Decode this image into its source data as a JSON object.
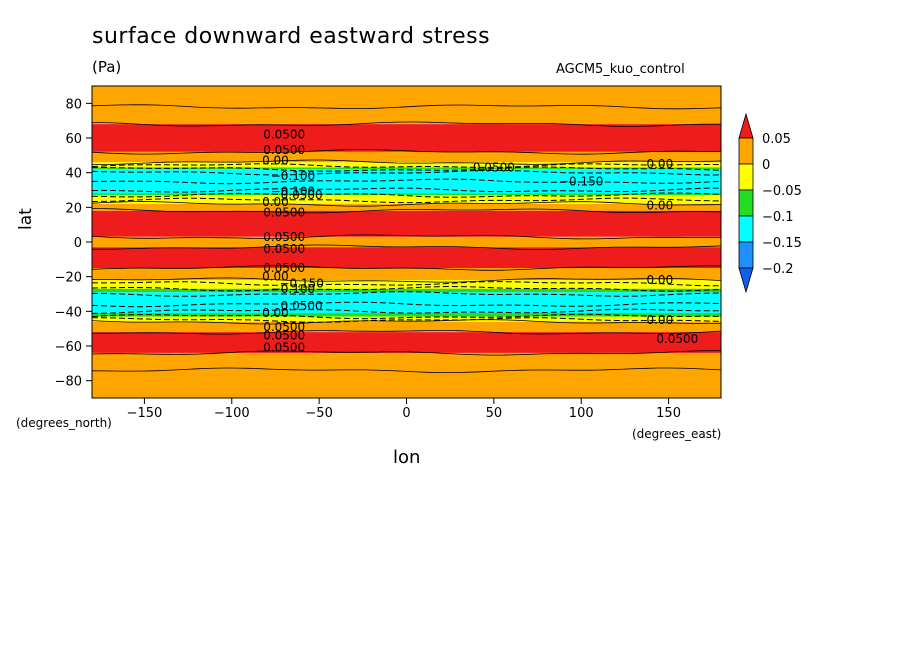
{
  "chart_data": {
    "type": "heatmap",
    "title": "surface downward eastward stress",
    "units": "(Pa)",
    "dataset": "AGCM5_kuo_control",
    "xlabel": "lon",
    "ylabel": "lat",
    "xunits": "(degrees_east)",
    "yunits": "(degrees_north)",
    "xlim": [
      -180,
      180
    ],
    "ylim": [
      -90,
      90
    ],
    "xticks": [
      -150,
      -100,
      -50,
      0,
      50,
      100,
      150
    ],
    "yticks": [
      80,
      60,
      40,
      20,
      0,
      -20,
      -40,
      -60,
      -80
    ],
    "xticklabels": [
      "−150",
      "−100",
      "−50",
      "0",
      "50",
      "100",
      "150"
    ],
    "yticklabels": [
      "80",
      "60",
      "40",
      "20",
      "0",
      "−20",
      "−40",
      "−60",
      "−80"
    ],
    "colorbar": {
      "labels": [
        "0.05",
        "0",
        "−0.05",
        "−0.1",
        "−0.15",
        "−0.2"
      ],
      "levels": [
        0.05,
        0,
        -0.05,
        -0.1,
        -0.15,
        -0.2
      ],
      "colors": [
        "#ee1c1c",
        "#ffa500",
        "#ffff00",
        "#22dd22",
        "#00ffff",
        "#1e90ff",
        "#1060ee"
      ],
      "extend": "both"
    },
    "bands": [
      {
        "lat_min": 68,
        "lat_max": 90,
        "level": "0 to 0.05",
        "color": "#ffa500"
      },
      {
        "lat_min": 52,
        "lat_max": 68,
        "level": "> 0.05",
        "color": "#ee1c1c"
      },
      {
        "lat_min": 46,
        "lat_max": 52,
        "level": "0 to 0.05",
        "color": "#ffa500"
      },
      {
        "lat_min": 43,
        "lat_max": 46,
        "level": "-0.05 to 0",
        "color": "#ffff00"
      },
      {
        "lat_min": 42,
        "lat_max": 43,
        "level": "-0.1 to -0.05",
        "color": "#22dd22"
      },
      {
        "lat_min": 28,
        "lat_max": 42,
        "level": "-0.15 to -0.1",
        "color": "#00ffff"
      },
      {
        "lat_min": 27,
        "lat_max": 28,
        "level": "-0.1 to -0.05",
        "color": "#22dd22"
      },
      {
        "lat_min": 22,
        "lat_max": 27,
        "level": "-0.05 to 0",
        "color": "#ffff00"
      },
      {
        "lat_min": 18,
        "lat_max": 22,
        "level": "0 to 0.05",
        "color": "#ffa500"
      },
      {
        "lat_min": 3,
        "lat_max": 18,
        "level": "> 0.05",
        "color": "#ee1c1c"
      },
      {
        "lat_min": -3,
        "lat_max": 3,
        "level": "0 to 0.05",
        "color": "#ffa500"
      },
      {
        "lat_min": -15,
        "lat_max": -3,
        "level": "> 0.05",
        "color": "#ee1c1c"
      },
      {
        "lat_min": -22,
        "lat_max": -15,
        "level": "0 to 0.05",
        "color": "#ffa500"
      },
      {
        "lat_min": -27,
        "lat_max": -22,
        "level": "-0.05 to 0",
        "color": "#ffff00"
      },
      {
        "lat_min": -29,
        "lat_max": -27,
        "level": "-0.1 to -0.05",
        "color": "#22dd22"
      },
      {
        "lat_min": -41,
        "lat_max": -29,
        "level": "-0.15 to -0.1",
        "color": "#00ffff"
      },
      {
        "lat_min": -43,
        "lat_max": -41,
        "level": "-0.1 to -0.05",
        "color": "#22dd22"
      },
      {
        "lat_min": -46,
        "lat_max": -43,
        "level": "-0.05 to 0",
        "color": "#ffff00"
      },
      {
        "lat_min": -52,
        "lat_max": -46,
        "level": "0 to 0.05",
        "color": "#ffa500"
      },
      {
        "lat_min": -64,
        "lat_max": -52,
        "level": "> 0.05",
        "color": "#ee1c1c"
      },
      {
        "lat_min": -90,
        "lat_max": -64,
        "level": "0 to 0.05",
        "color": "#ffa500"
      }
    ],
    "contours": [
      {
        "lat": 78,
        "level": 0.0,
        "dashed": false
      },
      {
        "lat": 68,
        "level": 0.05,
        "dashed": false
      },
      {
        "lat": 52,
        "level": 0.05,
        "dashed": false
      },
      {
        "lat": 46,
        "level": 0.0,
        "dashed": false
      },
      {
        "lat": 44,
        "level": -0.025,
        "dashed": true
      },
      {
        "lat": 42,
        "level": -0.05,
        "dashed": true
      },
      {
        "lat": 40,
        "level": -0.1,
        "dashed": true
      },
      {
        "lat": 35,
        "level": -0.15,
        "dashed": true
      },
      {
        "lat": 30,
        "level": -0.1,
        "dashed": true
      },
      {
        "lat": 27,
        "level": -0.05,
        "dashed": true
      },
      {
        "lat": 24,
        "level": -0.025,
        "dashed": true
      },
      {
        "lat": 22,
        "level": 0.0,
        "dashed": false
      },
      {
        "lat": 18,
        "level": 0.05,
        "dashed": false
      },
      {
        "lat": 3,
        "level": 0.05,
        "dashed": false
      },
      {
        "lat": -3,
        "level": 0.05,
        "dashed": false
      },
      {
        "lat": -15,
        "level": 0.05,
        "dashed": false
      },
      {
        "lat": -22,
        "level": 0.0,
        "dashed": false
      },
      {
        "lat": -24,
        "level": -0.025,
        "dashed": true
      },
      {
        "lat": -27,
        "level": -0.05,
        "dashed": true
      },
      {
        "lat": -30,
        "level": -0.1,
        "dashed": true
      },
      {
        "lat": -36,
        "level": -0.15,
        "dashed": true
      },
      {
        "lat": -40,
        "level": -0.1,
        "dashed": true
      },
      {
        "lat": -43,
        "level": -0.05,
        "dashed": true
      },
      {
        "lat": -45,
        "level": -0.025,
        "dashed": true
      },
      {
        "lat": -46,
        "level": 0.0,
        "dashed": false
      },
      {
        "lat": -52,
        "level": 0.05,
        "dashed": false
      },
      {
        "lat": -64,
        "level": 0.05,
        "dashed": false
      },
      {
        "lat": -74,
        "level": 0.0,
        "dashed": false
      }
    ],
    "contour_labels": [
      {
        "text": "0.0500",
        "lon": -70,
        "lat": 62
      },
      {
        "text": "0.0500",
        "lon": -70,
        "lat": 53
      },
      {
        "text": "0.00",
        "lon": -75,
        "lat": 47
      },
      {
        "text": "−0.100",
        "lon": -65,
        "lat": 38
      },
      {
        "text": "−0.100",
        "lon": -65,
        "lat": 29
      },
      {
        "text": "0.0500",
        "lon": -60,
        "lat": 27
      },
      {
        "text": "0.00",
        "lon": -75,
        "lat": 23
      },
      {
        "text": "0.0500",
        "lon": -70,
        "lat": 17
      },
      {
        "text": "0.0500",
        "lon": -70,
        "lat": 3
      },
      {
        "text": "0.0500",
        "lon": -70,
        "lat": -4
      },
      {
        "text": "0.0500",
        "lon": -70,
        "lat": -15
      },
      {
        "text": "0.00",
        "lon": -75,
        "lat": -20
      },
      {
        "text": "−0.150",
        "lon": -60,
        "lat": -24
      },
      {
        "text": "−0.100",
        "lon": -65,
        "lat": -27
      },
      {
        "text": "0.0500",
        "lon": -60,
        "lat": -37
      },
      {
        "text": "0.00",
        "lon": -75,
        "lat": -41
      },
      {
        "text": "0.0500",
        "lon": -70,
        "lat": -49
      },
      {
        "text": "0.0500",
        "lon": -70,
        "lat": -54
      },
      {
        "text": "0.0500",
        "lon": -70,
        "lat": -61
      },
      {
        "text": "0.0500",
        "lon": 50,
        "lat": 43
      },
      {
        "text": "−0.150",
        "lon": 100,
        "lat": 35
      },
      {
        "text": "0.00",
        "lon": 145,
        "lat": 45
      },
      {
        "text": "0.00",
        "lon": 145,
        "lat": 21
      },
      {
        "text": "0.00",
        "lon": 145,
        "lat": -22
      },
      {
        "text": "0.00",
        "lon": 145,
        "lat": -45
      },
      {
        "text": "0.0500",
        "lon": 155,
        "lat": -56
      }
    ]
  }
}
